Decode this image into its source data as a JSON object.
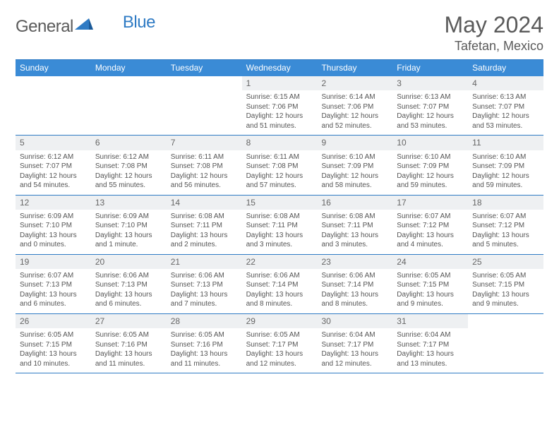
{
  "brand": {
    "part1": "General",
    "part2": "Blue"
  },
  "header": {
    "month_title": "May 2024",
    "location": "Tafetan, Mexico"
  },
  "colors": {
    "header_bg": "#3a8bd6",
    "border": "#2f7bc4",
    "daynum_bg": "#eef0f2",
    "text": "#555555",
    "title_text": "#5a5a5a"
  },
  "dow": [
    "Sunday",
    "Monday",
    "Tuesday",
    "Wednesday",
    "Thursday",
    "Friday",
    "Saturday"
  ],
  "weeks": [
    [
      {
        "empty": true
      },
      {
        "empty": true
      },
      {
        "empty": true
      },
      {
        "day": "1",
        "sunrise": "Sunrise: 6:15 AM",
        "sunset": "Sunset: 7:06 PM",
        "dl1": "Daylight: 12 hours",
        "dl2": "and 51 minutes."
      },
      {
        "day": "2",
        "sunrise": "Sunrise: 6:14 AM",
        "sunset": "Sunset: 7:06 PM",
        "dl1": "Daylight: 12 hours",
        "dl2": "and 52 minutes."
      },
      {
        "day": "3",
        "sunrise": "Sunrise: 6:13 AM",
        "sunset": "Sunset: 7:07 PM",
        "dl1": "Daylight: 12 hours",
        "dl2": "and 53 minutes."
      },
      {
        "day": "4",
        "sunrise": "Sunrise: 6:13 AM",
        "sunset": "Sunset: 7:07 PM",
        "dl1": "Daylight: 12 hours",
        "dl2": "and 53 minutes."
      }
    ],
    [
      {
        "day": "5",
        "sunrise": "Sunrise: 6:12 AM",
        "sunset": "Sunset: 7:07 PM",
        "dl1": "Daylight: 12 hours",
        "dl2": "and 54 minutes."
      },
      {
        "day": "6",
        "sunrise": "Sunrise: 6:12 AM",
        "sunset": "Sunset: 7:08 PM",
        "dl1": "Daylight: 12 hours",
        "dl2": "and 55 minutes."
      },
      {
        "day": "7",
        "sunrise": "Sunrise: 6:11 AM",
        "sunset": "Sunset: 7:08 PM",
        "dl1": "Daylight: 12 hours",
        "dl2": "and 56 minutes."
      },
      {
        "day": "8",
        "sunrise": "Sunrise: 6:11 AM",
        "sunset": "Sunset: 7:08 PM",
        "dl1": "Daylight: 12 hours",
        "dl2": "and 57 minutes."
      },
      {
        "day": "9",
        "sunrise": "Sunrise: 6:10 AM",
        "sunset": "Sunset: 7:09 PM",
        "dl1": "Daylight: 12 hours",
        "dl2": "and 58 minutes."
      },
      {
        "day": "10",
        "sunrise": "Sunrise: 6:10 AM",
        "sunset": "Sunset: 7:09 PM",
        "dl1": "Daylight: 12 hours",
        "dl2": "and 59 minutes."
      },
      {
        "day": "11",
        "sunrise": "Sunrise: 6:10 AM",
        "sunset": "Sunset: 7:09 PM",
        "dl1": "Daylight: 12 hours",
        "dl2": "and 59 minutes."
      }
    ],
    [
      {
        "day": "12",
        "sunrise": "Sunrise: 6:09 AM",
        "sunset": "Sunset: 7:10 PM",
        "dl1": "Daylight: 13 hours",
        "dl2": "and 0 minutes."
      },
      {
        "day": "13",
        "sunrise": "Sunrise: 6:09 AM",
        "sunset": "Sunset: 7:10 PM",
        "dl1": "Daylight: 13 hours",
        "dl2": "and 1 minute."
      },
      {
        "day": "14",
        "sunrise": "Sunrise: 6:08 AM",
        "sunset": "Sunset: 7:11 PM",
        "dl1": "Daylight: 13 hours",
        "dl2": "and 2 minutes."
      },
      {
        "day": "15",
        "sunrise": "Sunrise: 6:08 AM",
        "sunset": "Sunset: 7:11 PM",
        "dl1": "Daylight: 13 hours",
        "dl2": "and 3 minutes."
      },
      {
        "day": "16",
        "sunrise": "Sunrise: 6:08 AM",
        "sunset": "Sunset: 7:11 PM",
        "dl1": "Daylight: 13 hours",
        "dl2": "and 3 minutes."
      },
      {
        "day": "17",
        "sunrise": "Sunrise: 6:07 AM",
        "sunset": "Sunset: 7:12 PM",
        "dl1": "Daylight: 13 hours",
        "dl2": "and 4 minutes."
      },
      {
        "day": "18",
        "sunrise": "Sunrise: 6:07 AM",
        "sunset": "Sunset: 7:12 PM",
        "dl1": "Daylight: 13 hours",
        "dl2": "and 5 minutes."
      }
    ],
    [
      {
        "day": "19",
        "sunrise": "Sunrise: 6:07 AM",
        "sunset": "Sunset: 7:13 PM",
        "dl1": "Daylight: 13 hours",
        "dl2": "and 6 minutes."
      },
      {
        "day": "20",
        "sunrise": "Sunrise: 6:06 AM",
        "sunset": "Sunset: 7:13 PM",
        "dl1": "Daylight: 13 hours",
        "dl2": "and 6 minutes."
      },
      {
        "day": "21",
        "sunrise": "Sunrise: 6:06 AM",
        "sunset": "Sunset: 7:13 PM",
        "dl1": "Daylight: 13 hours",
        "dl2": "and 7 minutes."
      },
      {
        "day": "22",
        "sunrise": "Sunrise: 6:06 AM",
        "sunset": "Sunset: 7:14 PM",
        "dl1": "Daylight: 13 hours",
        "dl2": "and 8 minutes."
      },
      {
        "day": "23",
        "sunrise": "Sunrise: 6:06 AM",
        "sunset": "Sunset: 7:14 PM",
        "dl1": "Daylight: 13 hours",
        "dl2": "and 8 minutes."
      },
      {
        "day": "24",
        "sunrise": "Sunrise: 6:05 AM",
        "sunset": "Sunset: 7:15 PM",
        "dl1": "Daylight: 13 hours",
        "dl2": "and 9 minutes."
      },
      {
        "day": "25",
        "sunrise": "Sunrise: 6:05 AM",
        "sunset": "Sunset: 7:15 PM",
        "dl1": "Daylight: 13 hours",
        "dl2": "and 9 minutes."
      }
    ],
    [
      {
        "day": "26",
        "sunrise": "Sunrise: 6:05 AM",
        "sunset": "Sunset: 7:15 PM",
        "dl1": "Daylight: 13 hours",
        "dl2": "and 10 minutes."
      },
      {
        "day": "27",
        "sunrise": "Sunrise: 6:05 AM",
        "sunset": "Sunset: 7:16 PM",
        "dl1": "Daylight: 13 hours",
        "dl2": "and 11 minutes."
      },
      {
        "day": "28",
        "sunrise": "Sunrise: 6:05 AM",
        "sunset": "Sunset: 7:16 PM",
        "dl1": "Daylight: 13 hours",
        "dl2": "and 11 minutes."
      },
      {
        "day": "29",
        "sunrise": "Sunrise: 6:05 AM",
        "sunset": "Sunset: 7:17 PM",
        "dl1": "Daylight: 13 hours",
        "dl2": "and 12 minutes."
      },
      {
        "day": "30",
        "sunrise": "Sunrise: 6:04 AM",
        "sunset": "Sunset: 7:17 PM",
        "dl1": "Daylight: 13 hours",
        "dl2": "and 12 minutes."
      },
      {
        "day": "31",
        "sunrise": "Sunrise: 6:04 AM",
        "sunset": "Sunset: 7:17 PM",
        "dl1": "Daylight: 13 hours",
        "dl2": "and 13 minutes."
      },
      {
        "empty": true
      }
    ]
  ]
}
